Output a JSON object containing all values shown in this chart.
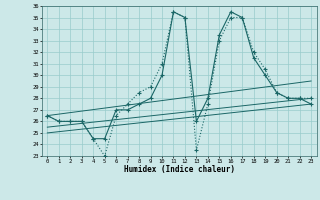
{
  "xlabel": "Humidex (Indice chaleur)",
  "xlim": [
    -0.5,
    23.5
  ],
  "ylim": [
    23,
    36
  ],
  "xticks": [
    0,
    1,
    2,
    3,
    4,
    5,
    6,
    7,
    8,
    9,
    10,
    11,
    12,
    13,
    14,
    15,
    16,
    17,
    18,
    19,
    20,
    21,
    22,
    23
  ],
  "yticks": [
    23,
    24,
    25,
    26,
    27,
    28,
    29,
    30,
    31,
    32,
    33,
    34,
    35,
    36
  ],
  "bg_color": "#cce8e8",
  "grid_color": "#99cccc",
  "line_color": "#1a6666",
  "line1_x": [
    0,
    1,
    2,
    3,
    4,
    5,
    6,
    7,
    8,
    9,
    10,
    11,
    12,
    13,
    14,
    15,
    16,
    17,
    18,
    19,
    20,
    21,
    22,
    23
  ],
  "line1_y": [
    26.5,
    26.0,
    26.0,
    26.0,
    24.5,
    23.0,
    26.5,
    27.5,
    28.5,
    29.0,
    31.0,
    35.5,
    35.0,
    23.5,
    27.5,
    33.0,
    35.0,
    35.0,
    32.0,
    30.5,
    28.5,
    28.0,
    28.0,
    28.0
  ],
  "line2_x": [
    0,
    1,
    2,
    3,
    4,
    5,
    6,
    7,
    8,
    9,
    10,
    11,
    12,
    13,
    14,
    15,
    16,
    17,
    18,
    19,
    20,
    21,
    22,
    23
  ],
  "line2_y": [
    26.5,
    26.0,
    26.0,
    26.0,
    24.5,
    24.5,
    27.0,
    27.0,
    27.5,
    28.0,
    30.0,
    35.5,
    35.0,
    26.0,
    28.0,
    33.5,
    35.5,
    35.0,
    31.5,
    30.0,
    28.5,
    28.0,
    28.0,
    27.5
  ],
  "line3_x": [
    0,
    23
  ],
  "line3_y": [
    26.5,
    29.5
  ],
  "line4_x": [
    0,
    23
  ],
  "line4_y": [
    25.5,
    28.0
  ],
  "line5_x": [
    0,
    23
  ],
  "line5_y": [
    25.0,
    27.5
  ]
}
